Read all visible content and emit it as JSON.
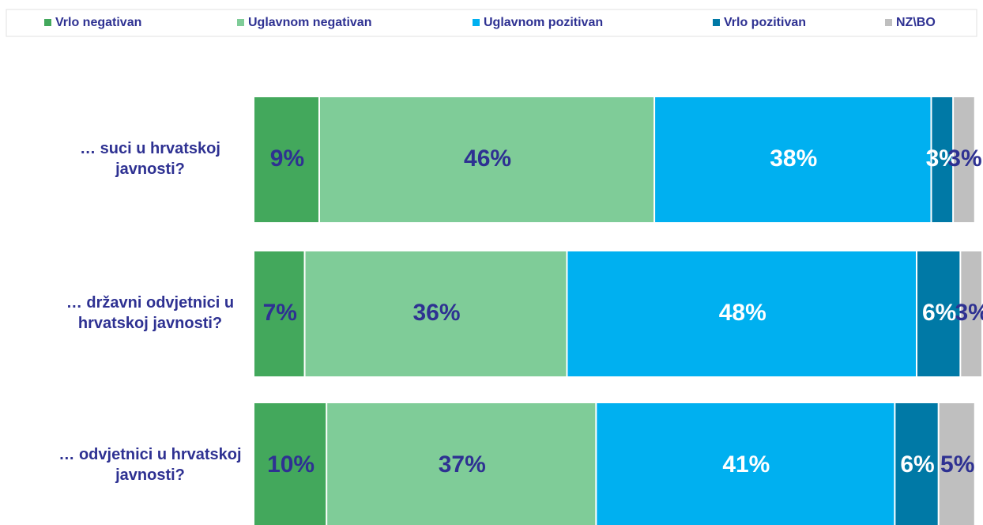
{
  "chart_data": {
    "type": "stacked-bar-horizontal",
    "categories": [
      "… suci u hrvatskoj\njavnosti?",
      "… državni odvjetnici u\nhrvatskoj javnosti?",
      "… odvjetnici u hrvatskoj\njavnosti?"
    ],
    "xlim": [
      0,
      100
    ],
    "legend": "top",
    "series": [
      {
        "name": "Vrlo negativan",
        "color": "#43a85c",
        "values": [
          9,
          7,
          10
        ],
        "value_labels": [
          "9%",
          "7%",
          "10%"
        ]
      },
      {
        "name": "Uglavnom negativan",
        "color": "#7fcc98",
        "values": [
          46,
          36,
          37
        ],
        "value_labels": [
          "46%",
          "36%",
          "37%"
        ]
      },
      {
        "name": "Uglavnom pozitivan",
        "color": "#00b0f0",
        "values": [
          38,
          48,
          41
        ],
        "value_labels": [
          "38%",
          "48%",
          "41%"
        ]
      },
      {
        "name": "Vrlo pozitivan",
        "color": "#0079a6",
        "values": [
          3,
          6,
          6
        ],
        "value_labels": [
          "3%",
          "6%",
          "6%"
        ]
      },
      {
        "name": "NZ\\BO",
        "color": "#bfbfbf",
        "values": [
          3,
          3,
          5
        ],
        "value_labels": [
          "3%",
          "3%",
          "5%"
        ]
      }
    ]
  }
}
